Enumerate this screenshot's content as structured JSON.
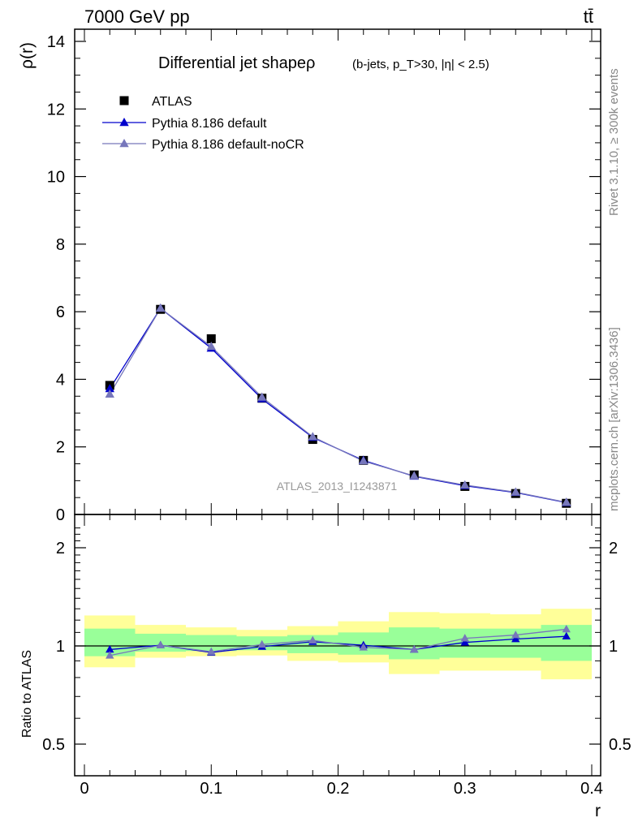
{
  "header": {
    "left": "7000 GeV pp",
    "right": "tt̄"
  },
  "side_labels": {
    "rivet": "Rivet 3.1.10, ≥ 300k events",
    "mcplots": "mcplots.cern.ch [arXiv:1306.3436]"
  },
  "chart_data": [
    {
      "type": "scatter",
      "title_main": "Differential jet shapeρ",
      "title_sub": "(b-jets, p_T>30, |η| < 2.5)",
      "ylabel": "ρ(r)",
      "xlabel": "",
      "watermark": "ATLAS_2013_I1243871",
      "xlim": [
        0,
        0.4
      ],
      "ylim": [
        0,
        14.5
      ],
      "yticks": [
        0,
        2,
        4,
        6,
        8,
        10,
        12,
        14
      ],
      "ytick_labels": [
        "0",
        "2",
        "4",
        "6",
        "8",
        "10",
        "12",
        "14"
      ],
      "legend_position": "top-left",
      "x": [
        0.02,
        0.06,
        0.1,
        0.14,
        0.18,
        0.22,
        0.26,
        0.3,
        0.34,
        0.38
      ],
      "series": [
        {
          "name": "ATLAS",
          "color": "#000000",
          "marker": "square",
          "values": [
            3.82,
            6.07,
            5.2,
            3.44,
            2.22,
            1.6,
            1.17,
            0.83,
            0.62,
            0.33
          ]
        },
        {
          "name": "Pythia 8.186 default",
          "color": "#0000cc",
          "marker": "triangle",
          "values": [
            3.72,
            6.1,
            4.92,
            3.42,
            2.28,
            1.6,
            1.13,
            0.85,
            0.65,
            0.35
          ]
        },
        {
          "name": "Pythia 8.186 default-noCR",
          "color": "#7777bb",
          "marker": "triangle",
          "values": [
            3.56,
            6.1,
            4.97,
            3.47,
            2.3,
            1.58,
            1.14,
            0.87,
            0.66,
            0.36
          ]
        }
      ]
    },
    {
      "type": "line",
      "ylabel": "Ratio to ATLAS",
      "xlabel": "r",
      "xlim": [
        0,
        0.4
      ],
      "ylim": [
        0.35,
        2.35
      ],
      "ytick_labels": [
        "0.5",
        "1",
        "2"
      ],
      "xtick_labels": [
        "0",
        "0.1",
        "0.2",
        "0.3",
        "0.4"
      ],
      "bin_edges": [
        0,
        0.04,
        0.08,
        0.12,
        0.16,
        0.2,
        0.24,
        0.28,
        0.32,
        0.36,
        0.4
      ],
      "band_yellow": [
        [
          0.86,
          1.24
        ],
        [
          0.92,
          1.16
        ],
        [
          0.93,
          1.14
        ],
        [
          0.935,
          1.12
        ],
        [
          0.9,
          1.15
        ],
        [
          0.89,
          1.19
        ],
        [
          0.82,
          1.27
        ],
        [
          0.84,
          1.26
        ],
        [
          0.84,
          1.25
        ],
        [
          0.79,
          1.3
        ]
      ],
      "band_green": [
        [
          0.93,
          1.13
        ],
        [
          0.96,
          1.09
        ],
        [
          0.965,
          1.08
        ],
        [
          0.97,
          1.07
        ],
        [
          0.95,
          1.08
        ],
        [
          0.94,
          1.1
        ],
        [
          0.91,
          1.14
        ],
        [
          0.92,
          1.13
        ],
        [
          0.92,
          1.13
        ],
        [
          0.9,
          1.16
        ]
      ],
      "colors": {
        "band_yellow": "#ffff99",
        "band_green": "#99ff99"
      },
      "x": [
        0.02,
        0.06,
        0.1,
        0.14,
        0.18,
        0.22,
        0.26,
        0.3,
        0.34,
        0.38
      ],
      "series": [
        {
          "name": "Pythia 8.186 default",
          "color": "#0000cc",
          "values": [
            0.975,
            1.005,
            0.955,
            0.995,
            1.03,
            1.005,
            0.975,
            1.025,
            1.05,
            1.07
          ]
        },
        {
          "name": "Pythia 8.186 default-noCR",
          "color": "#7777bb",
          "values": [
            0.935,
            1.005,
            0.96,
            1.01,
            1.04,
            0.99,
            0.975,
            1.055,
            1.08,
            1.125
          ]
        }
      ]
    }
  ]
}
